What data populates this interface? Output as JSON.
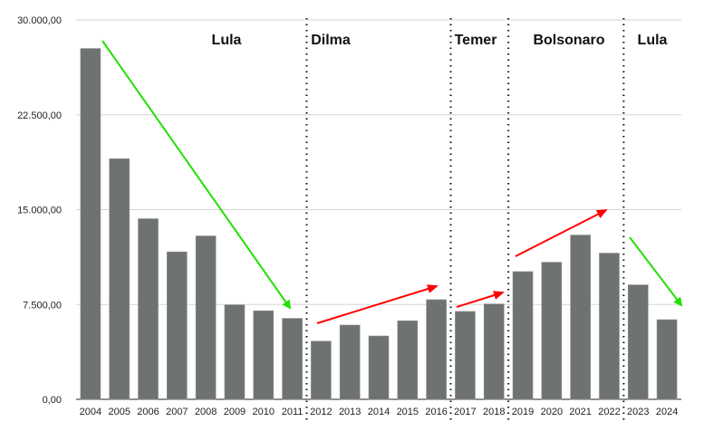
{
  "chart_data": {
    "type": "bar",
    "title": "",
    "xlabel": "",
    "ylabel": "",
    "ylim": [
      0,
      30000
    ],
    "yticks": [
      0,
      7500,
      15000,
      22500,
      30000
    ],
    "ytick_labels": [
      "0,00",
      "7.500,00",
      "15.000,00",
      "22.500,00",
      "30.000,00"
    ],
    "grid": true,
    "bar_color": "#6e7370",
    "categories": [
      "2004",
      "2005",
      "2006",
      "2007",
      "2008",
      "2009",
      "2010",
      "2011",
      "2012",
      "2013",
      "2014",
      "2015",
      "2016",
      "2017",
      "2018",
      "2019",
      "2020",
      "2021",
      "2022",
      "2023",
      "2024"
    ],
    "values": [
      27740,
      19020,
      14280,
      11660,
      12920,
      7470,
      7000,
      6400,
      4600,
      5870,
      5010,
      6210,
      7880,
      6950,
      7540,
      10100,
      10840,
      12990,
      11560,
      9050,
      6300
    ],
    "periods": [
      {
        "label": "Lula",
        "from": "2004",
        "to": "2011",
        "trend": "down",
        "trend_color": "#22e000"
      },
      {
        "label": "Dilma",
        "from": "2012",
        "to": "2016",
        "trend": "up",
        "trend_color": "#ff0000"
      },
      {
        "label": "Temer",
        "from": "2017",
        "to": "2018",
        "trend": "up",
        "trend_color": "#ff0000"
      },
      {
        "label": "Bolsonaro",
        "from": "2019",
        "to": "2022",
        "trend": "up",
        "trend_color": "#ff0000"
      },
      {
        "label": "Lula",
        "from": "2023",
        "to": "2024",
        "trend": "down",
        "trend_color": "#22e000"
      }
    ]
  }
}
